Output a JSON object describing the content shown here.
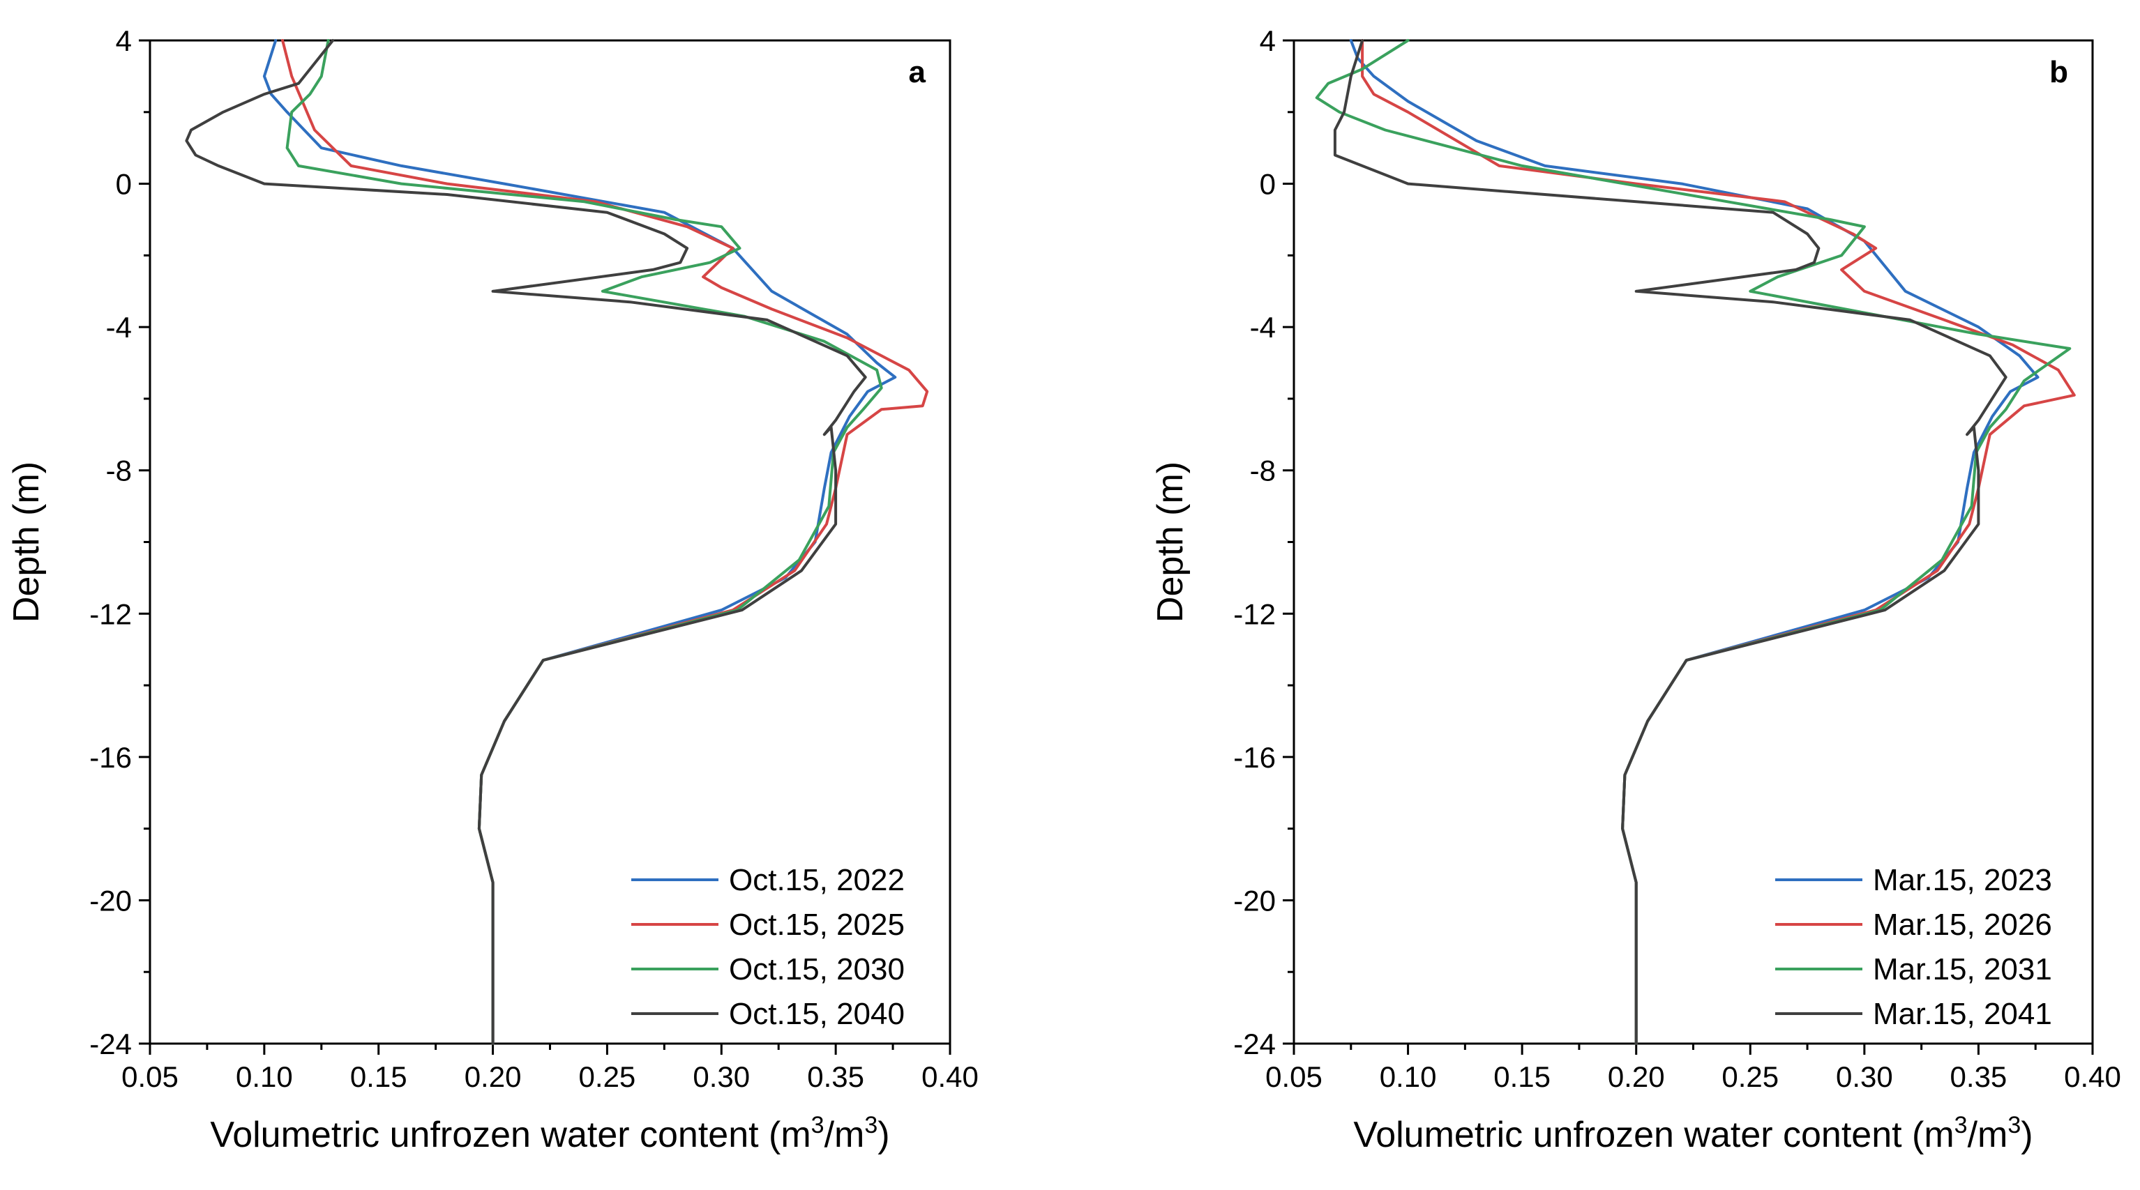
{
  "chart_data": [
    {
      "type": "line",
      "panel_label": "a",
      "xlabel": "Volumetric unfrozen water content (m",
      "xlabel_sup1": "3",
      "xlabel_mid": "/m",
      "xlabel_sup2": "3",
      "xlabel_end": ")",
      "ylabel": "Depth (m)",
      "xlim": [
        0.05,
        0.4
      ],
      "ylim": [
        -24,
        4
      ],
      "xticks": [
        0.05,
        0.1,
        0.15,
        0.2,
        0.25,
        0.3,
        0.35,
        0.4
      ],
      "xtick_labels": [
        "0.05",
        "0.10",
        "0.15",
        "0.20",
        "0.25",
        "0.30",
        "0.35",
        "0.40"
      ],
      "yticks": [
        4,
        0,
        -4,
        -8,
        -12,
        -16,
        -20,
        -24
      ],
      "ytick_labels": [
        "4",
        "0",
        "-4",
        "-8",
        "-12",
        "-16",
        "-20",
        "-24"
      ],
      "legend_position": "bottom-right",
      "series": [
        {
          "name": "Oct.15, 2022",
          "color": "#2e6fc0",
          "x": [
            0.105,
            0.1,
            0.103,
            0.11,
            0.125,
            0.16,
            0.205,
            0.275,
            0.305,
            0.322,
            0.355,
            0.368,
            0.376,
            0.364,
            0.356,
            0.348,
            0.345,
            0.341,
            0.328,
            0.3,
            0.222,
            0.205,
            0.195,
            0.194,
            0.2,
            0.2
          ],
          "y": [
            4,
            3.0,
            2.5,
            2.0,
            1.0,
            0.5,
            0.0,
            -0.8,
            -1.8,
            -3.0,
            -4.2,
            -5.0,
            -5.4,
            -5.8,
            -6.5,
            -7.5,
            -8.5,
            -10.0,
            -11.0,
            -11.9,
            -13.3,
            -15.0,
            -16.5,
            -18.0,
            -19.5,
            -24
          ]
        },
        {
          "name": "Oct.15, 2025",
          "color": "#d64545",
          "x": [
            0.108,
            0.112,
            0.122,
            0.138,
            0.18,
            0.245,
            0.285,
            0.305,
            0.292,
            0.3,
            0.322,
            0.355,
            0.382,
            0.39,
            0.388,
            0.37,
            0.355,
            0.35,
            0.346,
            0.332,
            0.305,
            0.222,
            0.205,
            0.195,
            0.194,
            0.2,
            0.2
          ],
          "y": [
            4,
            3.0,
            1.5,
            0.5,
            0.0,
            -0.5,
            -1.2,
            -1.8,
            -2.6,
            -2.9,
            -3.5,
            -4.3,
            -5.2,
            -5.8,
            -6.2,
            -6.3,
            -7.0,
            -8.5,
            -9.5,
            -10.8,
            -11.9,
            -13.3,
            -15.0,
            -16.5,
            -18.0,
            -19.5,
            -24
          ]
        },
        {
          "name": "Oct.15, 2030",
          "color": "#3aa15d",
          "x": [
            0.128,
            0.125,
            0.12,
            0.112,
            0.11,
            0.115,
            0.16,
            0.24,
            0.28,
            0.3,
            0.308,
            0.295,
            0.265,
            0.248,
            0.31,
            0.345,
            0.368,
            0.37,
            0.362,
            0.355,
            0.349,
            0.347,
            0.334,
            0.307,
            0.222,
            0.205,
            0.195,
            0.194,
            0.2,
            0.2
          ],
          "y": [
            4,
            3.0,
            2.5,
            2.0,
            1.0,
            0.5,
            0.0,
            -0.5,
            -1.0,
            -1.2,
            -1.8,
            -2.2,
            -2.6,
            -3.0,
            -3.7,
            -4.4,
            -5.2,
            -5.7,
            -6.3,
            -6.8,
            -7.5,
            -9.0,
            -10.5,
            -11.9,
            -13.3,
            -15.0,
            -16.5,
            -18.0,
            -19.5,
            -24
          ]
        },
        {
          "name": "Oct.15, 2040",
          "color": "#3f3f3f",
          "x": [
            0.13,
            0.115,
            0.1,
            0.082,
            0.068,
            0.066,
            0.07,
            0.08,
            0.1,
            0.18,
            0.25,
            0.275,
            0.285,
            0.282,
            0.27,
            0.2,
            0.26,
            0.32,
            0.355,
            0.363,
            0.358,
            0.35,
            0.345,
            0.348,
            0.35,
            0.35,
            0.335,
            0.309,
            0.222,
            0.205,
            0.195,
            0.194,
            0.2,
            0.2
          ],
          "y": [
            4,
            2.8,
            2.5,
            2.0,
            1.5,
            1.2,
            0.8,
            0.5,
            0.0,
            -0.3,
            -0.8,
            -1.4,
            -1.8,
            -2.2,
            -2.4,
            -3.0,
            -3.3,
            -3.8,
            -4.8,
            -5.4,
            -5.8,
            -6.6,
            -7.0,
            -6.8,
            -8.0,
            -9.5,
            -10.8,
            -11.9,
            -13.3,
            -15.0,
            -16.5,
            -18.0,
            -19.5,
            -24
          ]
        }
      ]
    },
    {
      "type": "line",
      "panel_label": "b",
      "xlabel": "Volumetric unfrozen water content (m",
      "xlabel_sup1": "3",
      "xlabel_mid": "/m",
      "xlabel_sup2": "3",
      "xlabel_end": ")",
      "ylabel": "Depth (m)",
      "xlim": [
        0.05,
        0.4
      ],
      "ylim": [
        -24,
        4
      ],
      "xticks": [
        0.05,
        0.1,
        0.15,
        0.2,
        0.25,
        0.3,
        0.35,
        0.4
      ],
      "xtick_labels": [
        "0.05",
        "0.10",
        "0.15",
        "0.20",
        "0.25",
        "0.30",
        "0.35",
        "0.40"
      ],
      "yticks": [
        4,
        0,
        -4,
        -8,
        -12,
        -16,
        -20,
        -24
      ],
      "ytick_labels": [
        "4",
        "0",
        "-4",
        "-8",
        "-12",
        "-16",
        "-20",
        "-24"
      ],
      "legend_position": "bottom-right",
      "series": [
        {
          "name": "Mar.15, 2023",
          "color": "#2e6fc0",
          "x": [
            0.075,
            0.078,
            0.085,
            0.1,
            0.13,
            0.16,
            0.22,
            0.275,
            0.3,
            0.318,
            0.35,
            0.368,
            0.376,
            0.364,
            0.356,
            0.348,
            0.345,
            0.341,
            0.328,
            0.3,
            0.222,
            0.205,
            0.195,
            0.194,
            0.2,
            0.2
          ],
          "y": [
            4,
            3.5,
            3.0,
            2.3,
            1.2,
            0.5,
            0.0,
            -0.7,
            -1.6,
            -3.0,
            -4.0,
            -4.8,
            -5.4,
            -5.8,
            -6.5,
            -7.5,
            -8.5,
            -10.0,
            -11.0,
            -11.9,
            -13.3,
            -15.0,
            -16.5,
            -18.0,
            -19.5,
            -24
          ]
        },
        {
          "name": "Mar.15, 2026",
          "color": "#d64545",
          "x": [
            0.08,
            0.08,
            0.085,
            0.1,
            0.14,
            0.2,
            0.265,
            0.295,
            0.305,
            0.29,
            0.3,
            0.335,
            0.365,
            0.385,
            0.392,
            0.37,
            0.355,
            0.35,
            0.346,
            0.332,
            0.305,
            0.222,
            0.205,
            0.195,
            0.194,
            0.2,
            0.2
          ],
          "y": [
            4,
            3.0,
            2.5,
            2.0,
            0.5,
            0.0,
            -0.5,
            -1.4,
            -1.8,
            -2.4,
            -3.0,
            -3.8,
            -4.5,
            -5.2,
            -5.9,
            -6.2,
            -7.0,
            -8.5,
            -9.5,
            -10.8,
            -11.9,
            -13.3,
            -15.0,
            -16.5,
            -18.0,
            -19.5,
            -24
          ]
        },
        {
          "name": "Mar.15, 2031",
          "color": "#3aa15d",
          "x": [
            0.1,
            0.08,
            0.065,
            0.06,
            0.07,
            0.09,
            0.15,
            0.24,
            0.285,
            0.3,
            0.29,
            0.262,
            0.25,
            0.3,
            0.35,
            0.39,
            0.37,
            0.362,
            0.355,
            0.349,
            0.347,
            0.334,
            0.307,
            0.222,
            0.205,
            0.195,
            0.194,
            0.2,
            0.2
          ],
          "y": [
            4,
            3.2,
            2.8,
            2.4,
            2.0,
            1.5,
            0.5,
            -0.5,
            -1.0,
            -1.2,
            -2.0,
            -2.6,
            -3.0,
            -3.6,
            -4.2,
            -4.6,
            -5.5,
            -6.3,
            -6.8,
            -7.5,
            -9.0,
            -10.5,
            -11.9,
            -13.3,
            -15.0,
            -16.5,
            -18.0,
            -19.5,
            -24
          ]
        },
        {
          "name": "Mar.15, 2041",
          "color": "#3f3f3f",
          "x": [
            0.08,
            0.075,
            0.072,
            0.068,
            0.068,
            0.1,
            0.2,
            0.26,
            0.275,
            0.28,
            0.278,
            0.27,
            0.2,
            0.26,
            0.32,
            0.355,
            0.362,
            0.358,
            0.35,
            0.345,
            0.348,
            0.35,
            0.35,
            0.335,
            0.309,
            0.222,
            0.205,
            0.195,
            0.194,
            0.2,
            0.2
          ],
          "y": [
            4,
            3.0,
            2.0,
            1.5,
            0.8,
            0.0,
            -0.5,
            -0.8,
            -1.4,
            -1.8,
            -2.2,
            -2.4,
            -3.0,
            -3.3,
            -3.8,
            -4.8,
            -5.4,
            -5.8,
            -6.6,
            -7.0,
            -6.8,
            -8.0,
            -9.5,
            -10.8,
            -11.9,
            -13.3,
            -15.0,
            -16.5,
            -18.0,
            -19.5,
            -24
          ]
        }
      ]
    }
  ]
}
